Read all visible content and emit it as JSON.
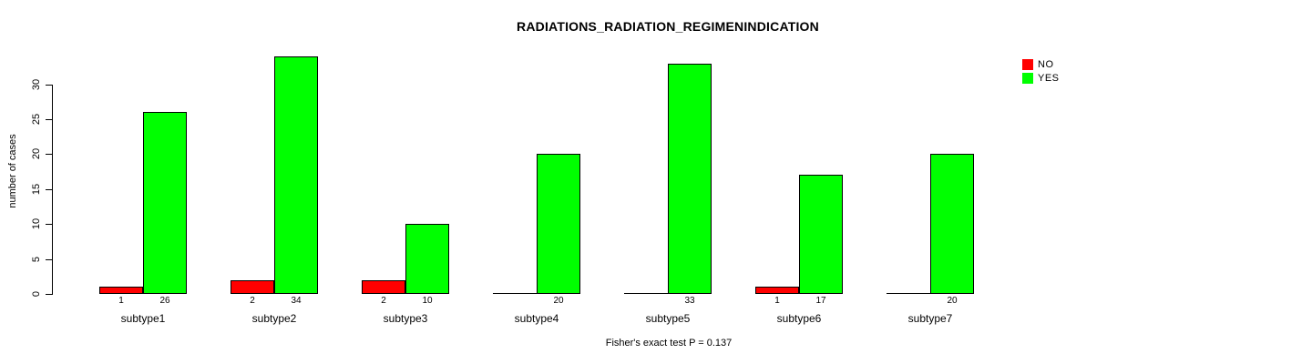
{
  "chart_data": {
    "type": "bar",
    "title": "RADIATIONS_RADIATION_REGIMENINDICATION",
    "ylabel": "number of cases",
    "xlabel": "",
    "categories": [
      "subtype1",
      "subtype2",
      "subtype3",
      "subtype4",
      "subtype5",
      "subtype6",
      "subtype7"
    ],
    "series": [
      {
        "name": "NO",
        "color": "#ff0000",
        "values": [
          1,
          2,
          2,
          0,
          0,
          1,
          0
        ]
      },
      {
        "name": "YES",
        "color": "#00ff00",
        "values": [
          26,
          34,
          10,
          20,
          33,
          17,
          20
        ]
      }
    ],
    "bar_labels_shown_only_when_nonzero": true,
    "yticks": [
      0,
      5,
      10,
      15,
      20,
      25,
      30
    ],
    "ylim": [
      0,
      34
    ],
    "grid": false,
    "legend_position": "top-right",
    "annotation": "Fisher's exact test P = 0.137"
  }
}
